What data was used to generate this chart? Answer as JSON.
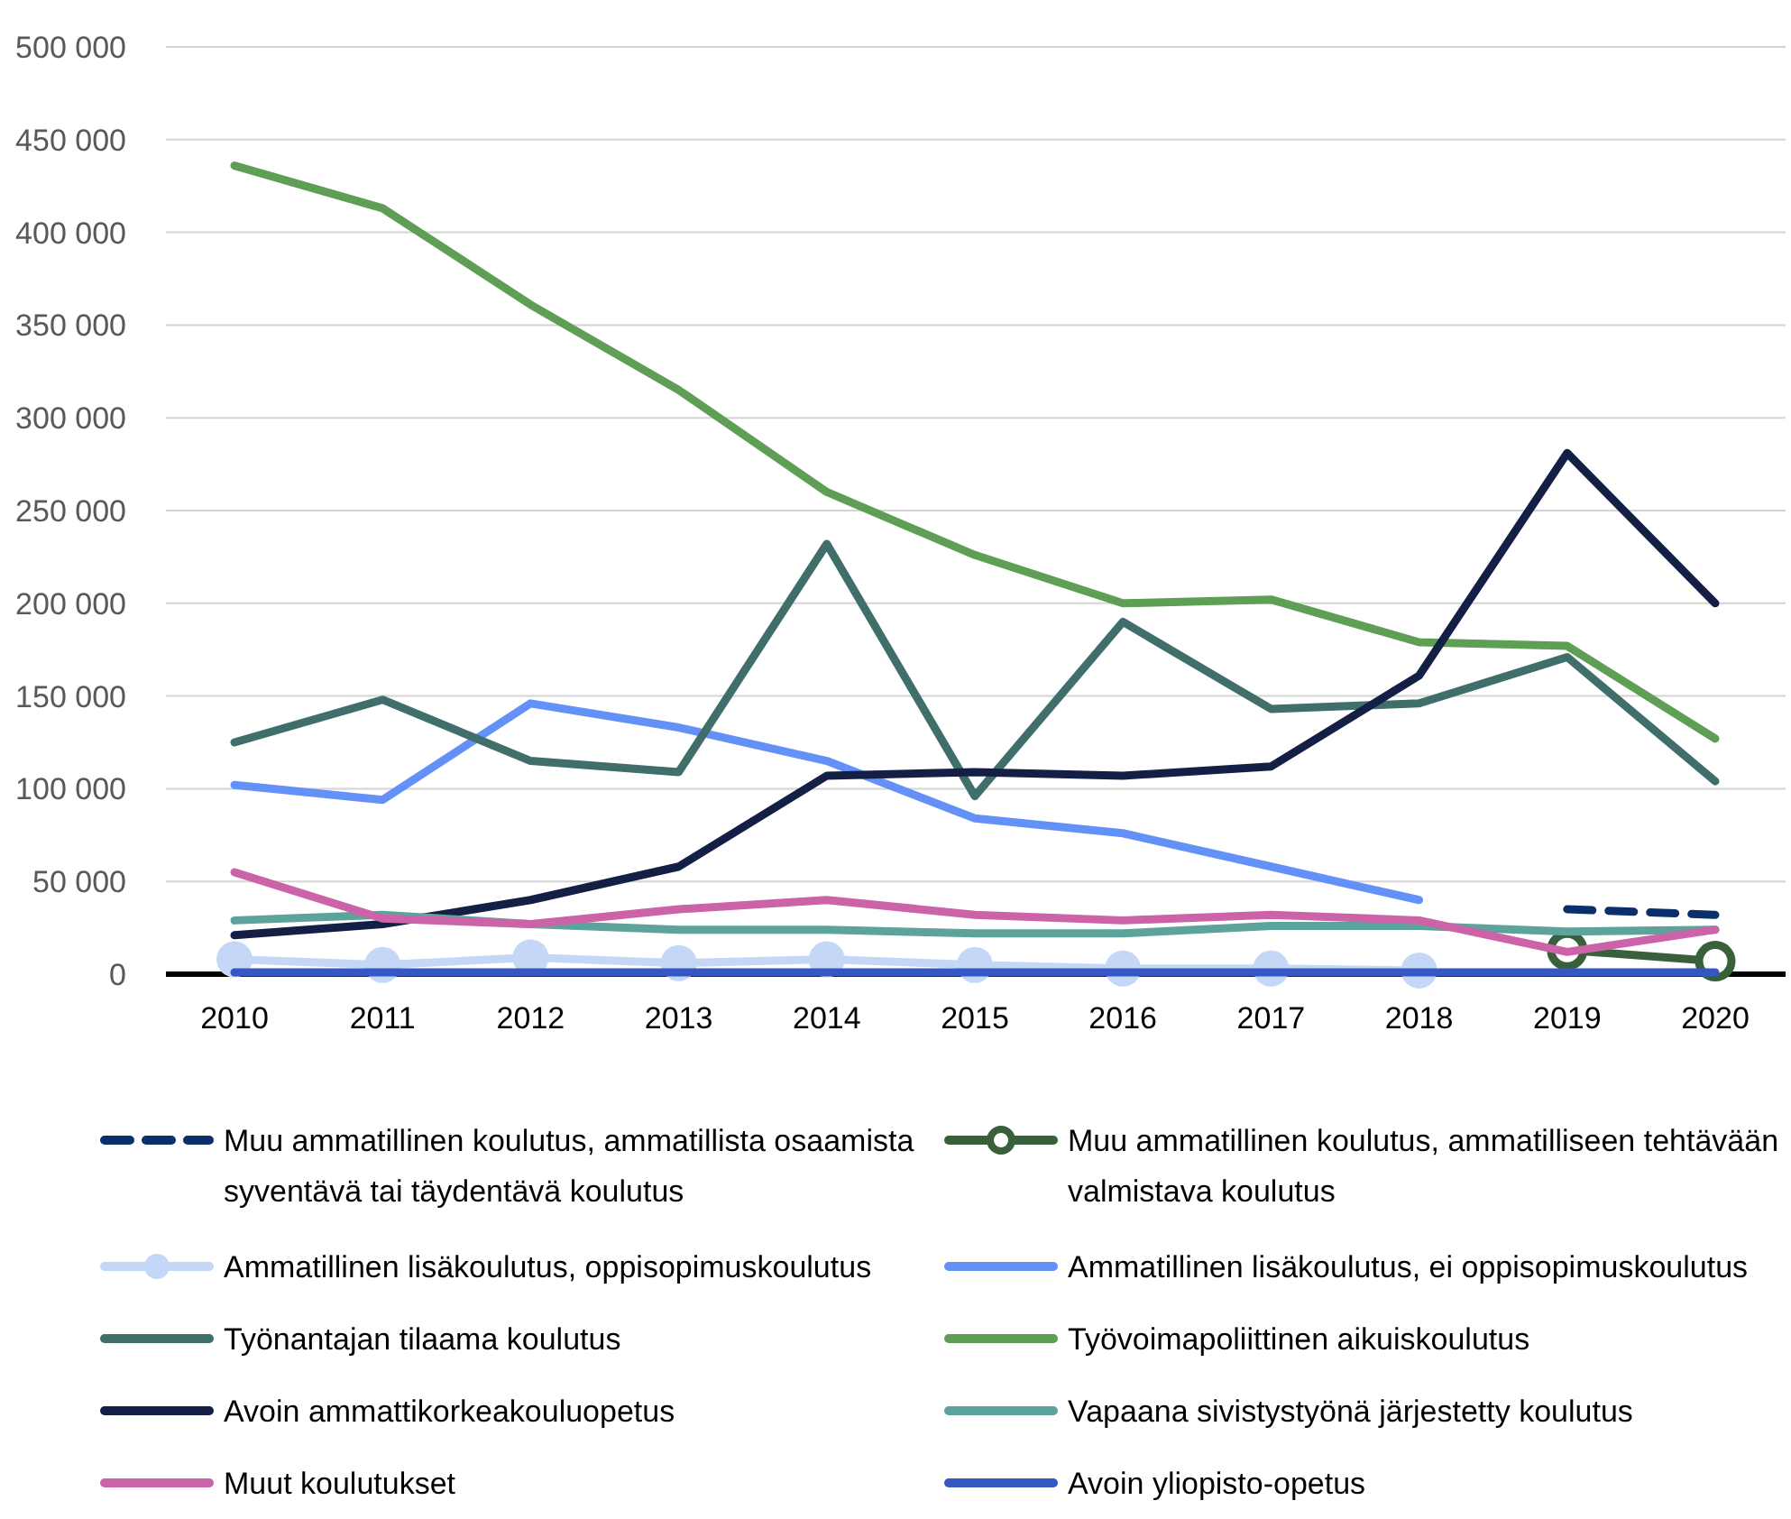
{
  "chart_data": {
    "type": "line",
    "categories": [
      "2010",
      "2011",
      "2012",
      "2013",
      "2014",
      "2015",
      "2016",
      "2017",
      "2018",
      "2019",
      "2020"
    ],
    "ylim": [
      0,
      500000
    ],
    "yticks": [
      {
        "value": 0,
        "label": "0"
      },
      {
        "value": 50000,
        "label": "50 000"
      },
      {
        "value": 100000,
        "label": "100 000"
      },
      {
        "value": 150000,
        "label": "150 000"
      },
      {
        "value": 200000,
        "label": "200 000"
      },
      {
        "value": 250000,
        "label": "250 000"
      },
      {
        "value": 300000,
        "label": "300 000"
      },
      {
        "value": 350000,
        "label": "350 000"
      },
      {
        "value": 400000,
        "label": "400 000"
      },
      {
        "value": 450000,
        "label": "450 000"
      },
      {
        "value": 500000,
        "label": "500 000"
      }
    ],
    "grid": "y",
    "legend": "bottom",
    "marker": "none",
    "line_style": "solid",
    "series": [
      {
        "name": "Muu ammatillinen koulutus, ammatillista osaamista syventävä tai täydentävä koulutus",
        "color": "#0b2f6b",
        "line_style": "dashed",
        "values": [
          null,
          null,
          null,
          null,
          null,
          null,
          null,
          null,
          null,
          35000,
          32000
        ]
      },
      {
        "name": "Muu ammatillinen koulutus, ammatilliseen tehtävään valmistava koulutus",
        "color": "#38603a",
        "marker": "circle",
        "values": [
          null,
          null,
          null,
          null,
          null,
          null,
          null,
          null,
          null,
          13000,
          7000
        ]
      },
      {
        "name": "Ammatillinen lisäkoulutus, oppisopimuskoulutus",
        "color": "#c5d7f7",
        "marker": "circle",
        "values": [
          8000,
          5000,
          9000,
          6000,
          8000,
          5000,
          3000,
          3000,
          2000,
          null,
          null
        ]
      },
      {
        "name": "Ammatillinen lisäkoulutus, ei oppisopimuskoulutus",
        "color": "#6491f7",
        "values": [
          102000,
          94000,
          146000,
          133000,
          115000,
          84000,
          76000,
          58000,
          40000,
          null,
          null
        ]
      },
      {
        "name": "Työnantajan tilaama koulutus",
        "color": "#3f6e6b",
        "values": [
          125000,
          148000,
          115000,
          109000,
          232000,
          96000,
          190000,
          143000,
          146000,
          171000,
          104000
        ]
      },
      {
        "name": "Työvoimapoliittinen aikuiskoulutus",
        "color": "#5e9e55",
        "values": [
          436000,
          413000,
          361000,
          315000,
          260000,
          226000,
          200000,
          202000,
          179000,
          177000,
          127000
        ]
      },
      {
        "name": "Avoin ammattikorkeakouluopetus",
        "color": "#141f45",
        "values": [
          21000,
          27000,
          40000,
          58000,
          107000,
          109000,
          107000,
          112000,
          161000,
          281000,
          200000
        ]
      },
      {
        "name": "Vapaana sivistystyönä järjestetty koulutus",
        "color": "#5ea39b",
        "values": [
          29000,
          32000,
          27000,
          24000,
          24000,
          22000,
          22000,
          26000,
          26000,
          23000,
          24000
        ]
      },
      {
        "name": "Muut koulutukset",
        "color": "#cc63a8",
        "values": [
          55000,
          30000,
          27000,
          35000,
          40000,
          32000,
          29000,
          32000,
          29000,
          12000,
          24000
        ]
      },
      {
        "name": "Avoin yliopisto-opetus",
        "color": "#3457c4",
        "values": [
          1000,
          1000,
          1000,
          1000,
          1000,
          1000,
          1000,
          1000,
          1000,
          1000,
          1000
        ]
      }
    ]
  }
}
